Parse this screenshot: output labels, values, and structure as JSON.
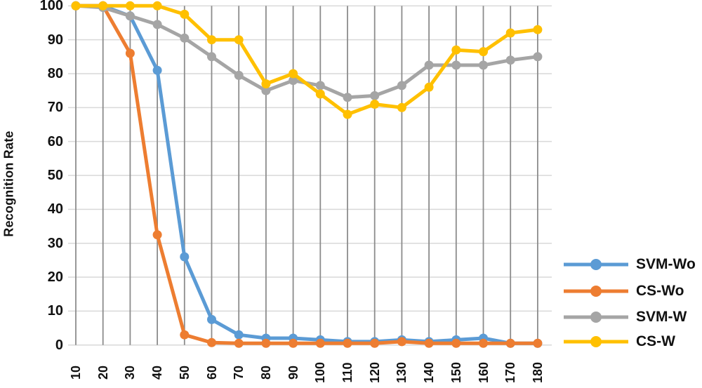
{
  "chart_data": {
    "type": "line",
    "title": "",
    "xlabel": "",
    "ylabel": "Recognition Rate",
    "categories": [
      "10",
      "20",
      "30",
      "40",
      "50",
      "60",
      "70",
      "80",
      "90",
      "100",
      "110",
      "120",
      "130",
      "140",
      "150",
      "160",
      "170",
      "180"
    ],
    "y_ticks": [
      0,
      10,
      20,
      30,
      40,
      50,
      60,
      70,
      80,
      90,
      100
    ],
    "ylim": [
      0,
      100
    ],
    "grid": {
      "horizontal": true,
      "vertical": true
    },
    "legend": {
      "position": "right-bottom"
    },
    "series": [
      {
        "name": "SVM-Wo",
        "color": "#5B9BD5",
        "values": [
          100,
          100,
          97,
          81,
          26,
          7.5,
          3,
          2,
          2,
          1.5,
          1,
          1,
          1.5,
          1,
          1.5,
          2,
          0.5,
          0.5
        ]
      },
      {
        "name": "CS-Wo",
        "color": "#ED7D31",
        "values": [
          100,
          100,
          86,
          32.5,
          3,
          0.7,
          0.5,
          0.5,
          0.5,
          0.5,
          0.5,
          0.5,
          1,
          0.5,
          0.5,
          0.5,
          0.5,
          0.5
        ]
      },
      {
        "name": "SVM-W",
        "color": "#A5A5A5",
        "values": [
          100,
          99.5,
          97,
          94.5,
          90.5,
          85,
          79.5,
          75,
          78,
          76.5,
          73,
          73.5,
          76.5,
          82.5,
          82.5,
          82.5,
          84,
          85
        ]
      },
      {
        "name": "CS-W",
        "color": "#FFC000",
        "values": [
          100,
          100,
          100,
          100,
          97.5,
          90,
          90,
          77,
          80,
          74,
          68,
          71,
          70,
          76,
          87,
          86.5,
          92,
          93
        ]
      }
    ]
  },
  "style": {
    "background": "#ffffff",
    "grid_color_horizontal": "#d9d9d9",
    "grid_color_vertical": "#8c8c8c",
    "text_color": "#111111"
  }
}
